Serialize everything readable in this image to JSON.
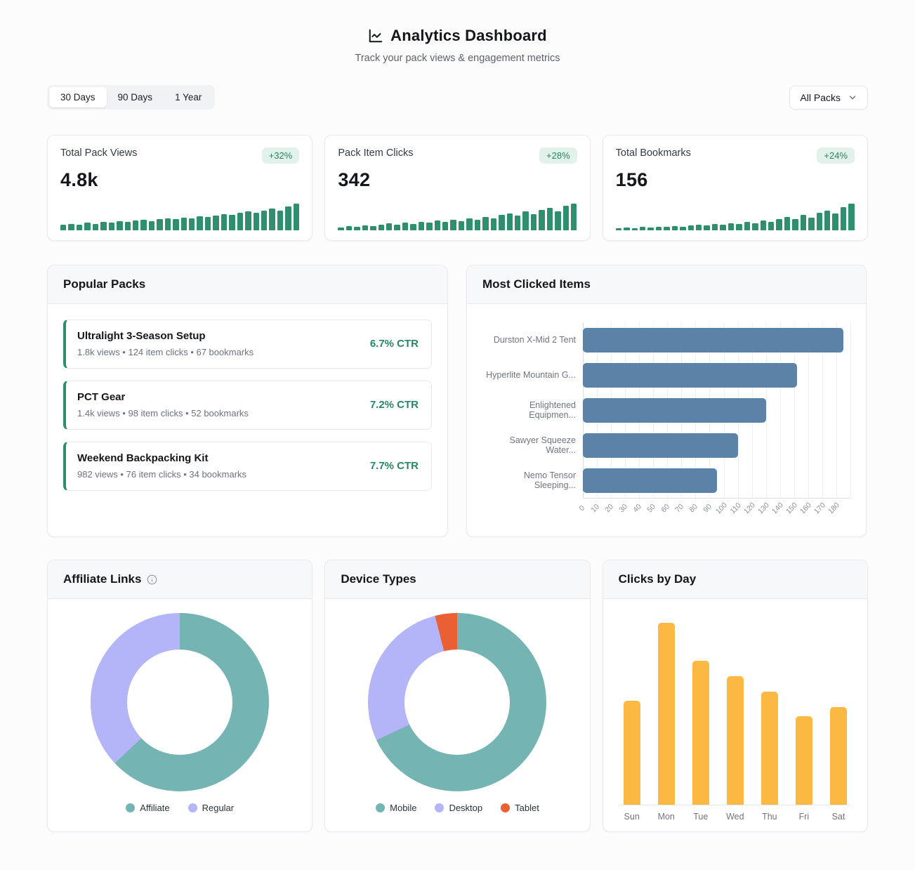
{
  "header": {
    "title": "Analytics Dashboard",
    "subtitle": "Track your pack views & engagement metrics"
  },
  "filters": {
    "ranges": [
      {
        "label": "30 Days",
        "active": true
      },
      {
        "label": "90 Days",
        "active": false
      },
      {
        "label": "1 Year",
        "active": false
      }
    ],
    "pack_select_value": "All Packs"
  },
  "stats": [
    {
      "label": "Total Pack Views",
      "value": "4.8k",
      "change": "+32%",
      "spark": [
        14,
        17,
        15,
        19,
        17,
        21,
        19,
        23,
        21,
        25,
        27,
        24,
        29,
        31,
        28,
        33,
        31,
        36,
        34,
        38,
        42,
        39,
        45,
        48,
        44,
        51,
        55,
        50,
        60,
        68
      ]
    },
    {
      "label": "Pack Item Clicks",
      "value": "342",
      "change": "+28%",
      "spark": [
        8,
        12,
        10,
        14,
        11,
        16,
        19,
        15,
        21,
        17,
        24,
        21,
        27,
        23,
        30,
        26,
        34,
        30,
        38,
        33,
        42,
        47,
        40,
        52,
        45,
        57,
        62,
        53,
        68,
        74
      ]
    },
    {
      "label": "Total Bookmarks",
      "value": "156",
      "change": "+24%",
      "spark": [
        5,
        6,
        5,
        7,
        6,
        8,
        7,
        9,
        8,
        10,
        12,
        10,
        14,
        12,
        16,
        14,
        19,
        16,
        22,
        19,
        25,
        29,
        24,
        33,
        28,
        38,
        43,
        36,
        50,
        58
      ]
    }
  ],
  "popular_packs": {
    "title": "Popular Packs",
    "items": [
      {
        "name": "Ultralight 3-Season Setup",
        "meta": "1.8k views • 124 item clicks • 67 bookmarks",
        "ctr": "6.7% CTR"
      },
      {
        "name": "PCT Gear",
        "meta": "1.4k views • 98 item clicks • 52 bookmarks",
        "ctr": "7.2% CTR"
      },
      {
        "name": "Weekend Backpacking Kit",
        "meta": "982 views • 76 item clicks • 34 bookmarks",
        "ctr": "7.7% CTR"
      }
    ]
  },
  "chart_data": [
    {
      "id": "most_clicked_items",
      "type": "bar",
      "orientation": "horizontal",
      "title": "Most Clicked Items",
      "categories": [
        "Durston X-Mid 2 Tent",
        "Hyperlite Mountain G...",
        "Enlightened Equipmen...",
        "Sawyer Squeeze Water...",
        "Nemo Tensor Sleeping..."
      ],
      "values": [
        185,
        152,
        130,
        110,
        95
      ],
      "xlim": [
        0,
        190
      ],
      "x_ticks": [
        0,
        10,
        20,
        30,
        40,
        50,
        60,
        70,
        80,
        90,
        100,
        110,
        120,
        130,
        140,
        150,
        160,
        170,
        180
      ],
      "grid": true,
      "bar_color": "#5b83a8",
      "legend_position": "none"
    },
    {
      "id": "affiliate_links",
      "type": "pie",
      "subtype": "donut",
      "title": "Affiliate Links",
      "slices": [
        {
          "label": "Affiliate",
          "value": 63,
          "color": "#74b4b3"
        },
        {
          "label": "Regular",
          "value": 37,
          "color": "#b3b5f8"
        }
      ],
      "legend_position": "bottom"
    },
    {
      "id": "device_types",
      "type": "pie",
      "subtype": "donut",
      "title": "Device Types",
      "slices": [
        {
          "label": "Mobile",
          "value": 68,
          "color": "#74b4b3"
        },
        {
          "label": "Desktop",
          "value": 28,
          "color": "#b3b5f8"
        },
        {
          "label": "Tablet",
          "value": 4,
          "color": "#ea5f33"
        }
      ],
      "legend_position": "bottom"
    },
    {
      "id": "clicks_by_day",
      "type": "bar",
      "orientation": "vertical",
      "title": "Clicks by Day",
      "categories": [
        "Sun",
        "Mon",
        "Tue",
        "Wed",
        "Thu",
        "Fri",
        "Sat"
      ],
      "values": [
        47,
        82,
        65,
        58,
        51,
        40,
        44
      ],
      "bar_color": "#fbb843",
      "legend_position": "none"
    }
  ],
  "colors": {
    "accent_green": "#2e8e6d",
    "badge_bg": "#e2f1e9",
    "badge_text": "#2a8564",
    "bar_blue": "#5b83a8",
    "bar_amber": "#fbb843",
    "donut_teal": "#74b4b3",
    "donut_periwinkle": "#b3b5f8",
    "donut_orange": "#ea5f33"
  }
}
